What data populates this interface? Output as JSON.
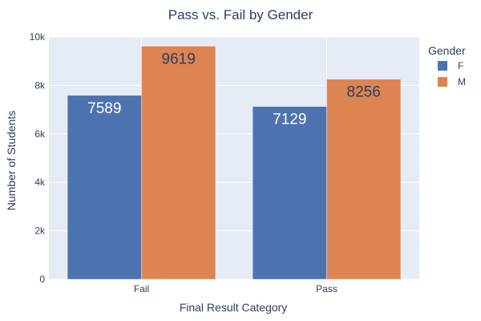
{
  "chart_data": {
    "type": "bar",
    "title": "Pass vs. Fail by Gender",
    "xlabel": "Final Result Category",
    "ylabel": "Number of Students",
    "categories": [
      "Fail",
      "Pass"
    ],
    "ylim": [
      0,
      10000
    ],
    "yticks": [
      0,
      2000,
      4000,
      6000,
      8000,
      10000
    ],
    "ytick_labels": [
      "0",
      "2k",
      "4k",
      "6k",
      "8k",
      "10k"
    ],
    "grid": true,
    "legend": {
      "title": "Gender",
      "position": "top-right"
    },
    "series": [
      {
        "name": "F",
        "values": [
          7589,
          7129
        ],
        "color": "#4c72b0",
        "label_color": "#ffffff"
      },
      {
        "name": "M",
        "values": [
          9619,
          8256
        ],
        "color": "#dd8452",
        "label_color": "#2a3f5f"
      }
    ],
    "background_color": "#e5ecf6"
  }
}
